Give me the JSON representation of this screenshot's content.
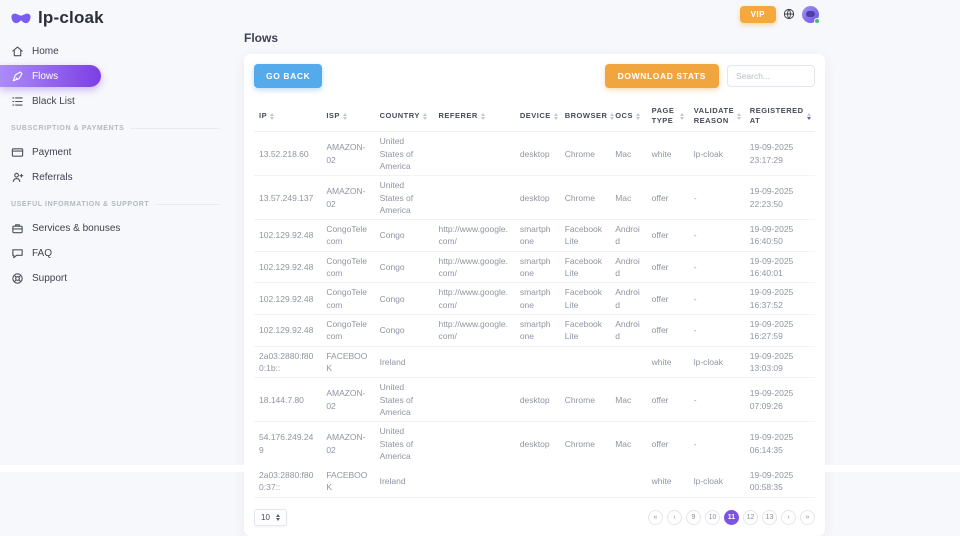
{
  "brand": {
    "name": "lp-cloak"
  },
  "topbar": {
    "vip_label": "VIP"
  },
  "sidebar": {
    "items": [
      {
        "label": "Home"
      },
      {
        "label": "Flows",
        "active": true
      },
      {
        "label": "Black List"
      }
    ],
    "sections": [
      {
        "title": "SUBSCRIPTION & PAYMENTS",
        "items": [
          {
            "label": "Payment"
          },
          {
            "label": "Referrals"
          }
        ]
      },
      {
        "title": "USEFUL INFORMATION & SUPPORT",
        "items": [
          {
            "label": "Services & bonuses"
          },
          {
            "label": "FAQ"
          },
          {
            "label": "Support"
          }
        ]
      }
    ]
  },
  "page": {
    "title": "Flows"
  },
  "toolbar": {
    "go_back_label": "GO BACK",
    "download_stats_label": "DOWNLOAD STATS",
    "search_placeholder": "Search..."
  },
  "table": {
    "columns": [
      "IP",
      "ISP",
      "COUNTRY",
      "REFERER",
      "DEVICE",
      "BROWSER",
      "OCS",
      "PAGE TYPE",
      "VALIDATE REASON",
      "REGISTERED AT"
    ],
    "sorted_column": "REGISTERED AT",
    "sort_direction": "desc",
    "rows": [
      [
        "13.52.218.60",
        "AMAZON-02",
        "United States of America",
        "",
        "desktop",
        "Chrome",
        "Mac",
        "white",
        "lp-cloak",
        "19-09-2025 23:17:29"
      ],
      [
        "13.57.249.137",
        "AMAZON-02",
        "United States of America",
        "",
        "desktop",
        "Chrome",
        "Mac",
        "offer",
        "-",
        "19-09-2025 22:23:50"
      ],
      [
        "102.129.92.48",
        "CongoTelecom",
        "Congo",
        "http://www.google.com/",
        "smartphone",
        "Facebook Lite",
        "Android",
        "offer",
        "-",
        "19-09-2025 16:40:50"
      ],
      [
        "102.129.92.48",
        "CongoTelecom",
        "Congo",
        "http://www.google.com/",
        "smartphone",
        "Facebook Lite",
        "Android",
        "offer",
        "-",
        "19-09-2025 16:40:01"
      ],
      [
        "102.129.92.48",
        "CongoTelecom",
        "Congo",
        "http://www.google.com/",
        "smartphone",
        "Facebook Lite",
        "Android",
        "offer",
        "-",
        "19-09-2025 16:37:52"
      ],
      [
        "102.129.92.48",
        "CongoTelecom",
        "Congo",
        "http://www.google.com/",
        "smartphone",
        "Facebook Lite",
        "Android",
        "offer",
        "-",
        "19-09-2025 16:27:59"
      ],
      [
        "2a03:2880:f800:1b::",
        "FACEBOOK",
        "Ireland",
        "",
        "",
        "",
        "",
        "white",
        "lp-cloak",
        "19-09-2025 13:03:09"
      ],
      [
        "18.144.7.80",
        "AMAZON-02",
        "United States of America",
        "",
        "desktop",
        "Chrome",
        "Mac",
        "offer",
        "-",
        "19-09-2025 07:09:26"
      ],
      [
        "54.176.249.249",
        "AMAZON-02",
        "United States of America",
        "",
        "desktop",
        "Chrome",
        "Mac",
        "offer",
        "-",
        "19-09-2025 06:14:35"
      ],
      [
        "2a03:2880:f800:37::",
        "FACEBOOK",
        "Ireland",
        "",
        "",
        "",
        "",
        "white",
        "lp-cloak",
        "19-09-2025 00:58:35"
      ]
    ]
  },
  "pagination": {
    "page_size": "10",
    "first_label": "«",
    "prev_label": "‹",
    "next_label": "›",
    "last_label": "»",
    "pages": [
      "9",
      "10",
      "11",
      "12",
      "13"
    ],
    "active_page": "11"
  },
  "colors": {
    "accent_purple": "#7c52e8",
    "sidebar_gradient_start": "#ab8cf6",
    "sidebar_gradient_end": "#7c3fe4",
    "go_back_blue": "#54aaea",
    "download_orange": "#f0a53e",
    "vip_orange": "#f5a83c",
    "online_green": "#38c172",
    "sort_active": "#5b5be6"
  }
}
